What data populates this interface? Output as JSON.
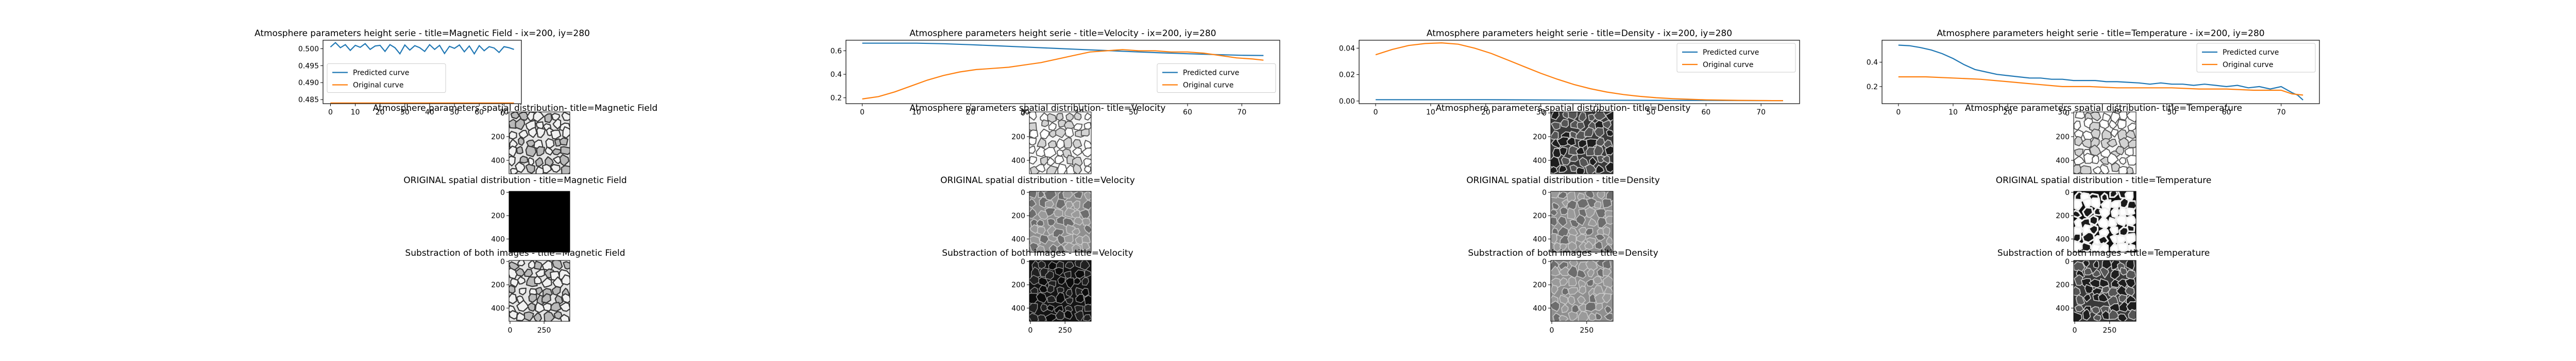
{
  "colors": {
    "predicted": "#1f77b4",
    "original": "#ff7f0e",
    "axis": "#000000"
  },
  "legend": {
    "predicted": "Predicted curve",
    "original": "Original curve"
  },
  "chart_data": [
    {
      "type": "line",
      "title": "Atmosphere parameters height serie - title=Magnetic Field - ix=200, iy=280",
      "legend_position": "center-left",
      "xlim": [
        -3,
        77
      ],
      "ylim": [
        0.4838,
        0.5025
      ],
      "x_ticks": [
        0,
        10,
        20,
        30,
        40,
        50,
        60,
        70
      ],
      "y_ticks": [
        0.485,
        0.49,
        0.495,
        0.5
      ],
      "y_tick_labels": [
        "0.485",
        "0.490",
        "0.495",
        "0.500"
      ],
      "series": [
        {
          "name": "Predicted curve",
          "x": [
            0,
            2,
            4,
            6,
            8,
            10,
            12,
            14,
            16,
            18,
            20,
            22,
            24,
            26,
            28,
            30,
            32,
            34,
            36,
            38,
            40,
            42,
            44,
            46,
            48,
            50,
            52,
            54,
            56,
            58,
            60,
            62,
            64,
            66,
            68,
            70,
            72,
            74
          ],
          "y": [
            0.5005,
            0.5018,
            0.5003,
            0.5012,
            0.4995,
            0.501,
            0.5004,
            0.5015,
            0.4998,
            0.5008,
            0.501,
            0.4992,
            0.5012,
            0.5003,
            0.4985,
            0.5011,
            0.4996,
            0.5009,
            0.5003,
            0.4992,
            0.5012,
            0.4998,
            0.501,
            0.4986,
            0.5007,
            0.5001,
            0.5011,
            0.4991,
            0.5008,
            0.4985,
            0.5009,
            0.4994,
            0.5006,
            0.5002,
            0.4989,
            0.5006,
            0.5003,
            0.4998
          ]
        },
        {
          "name": "Original curve",
          "x": [
            0,
            74
          ],
          "y": [
            0.484,
            0.484
          ]
        }
      ]
    },
    {
      "type": "line",
      "title": "Atmosphere parameters height serie - title=Velocity - ix=200, iy=280",
      "legend_position": "center-right",
      "xlim": [
        -3,
        77
      ],
      "ylim": [
        0.15,
        0.69
      ],
      "x_ticks": [
        0,
        10,
        20,
        30,
        40,
        50,
        60,
        70
      ],
      "y_ticks": [
        0.2,
        0.4,
        0.6
      ],
      "y_tick_labels": [
        "0.2",
        "0.4",
        "0.6"
      ],
      "series": [
        {
          "name": "Predicted curve",
          "x": [
            0,
            5,
            10,
            15,
            20,
            25,
            30,
            35,
            40,
            45,
            50,
            55,
            60,
            65,
            70,
            74
          ],
          "y": [
            0.665,
            0.665,
            0.665,
            0.66,
            0.652,
            0.642,
            0.632,
            0.622,
            0.612,
            0.602,
            0.592,
            0.583,
            0.575,
            0.568,
            0.562,
            0.56
          ]
        },
        {
          "name": "Original curve",
          "x": [
            0,
            3,
            6,
            9,
            12,
            15,
            18,
            21,
            24,
            27,
            30,
            33,
            36,
            39,
            42,
            45,
            48,
            51,
            54,
            57,
            60,
            63,
            66,
            69,
            72,
            74
          ],
          "y": [
            0.19,
            0.21,
            0.25,
            0.3,
            0.35,
            0.39,
            0.42,
            0.44,
            0.45,
            0.46,
            0.48,
            0.5,
            0.53,
            0.56,
            0.59,
            0.6,
            0.61,
            0.6,
            0.6,
            0.59,
            0.59,
            0.58,
            0.56,
            0.54,
            0.53,
            0.52
          ]
        }
      ]
    },
    {
      "type": "line",
      "title": "Atmosphere parameters height serie - title=Density - ix=200, iy=280",
      "legend_position": "top-right",
      "xlim": [
        -3,
        77
      ],
      "ylim": [
        -0.002,
        0.046
      ],
      "x_ticks": [
        0,
        10,
        20,
        30,
        40,
        50,
        60,
        70
      ],
      "y_ticks": [
        0.0,
        0.02,
        0.04
      ],
      "y_tick_labels": [
        "0.00",
        "0.02",
        "0.04"
      ],
      "series": [
        {
          "name": "Predicted curve",
          "x": [
            0,
            10,
            20,
            30,
            40,
            50,
            60,
            70,
            74
          ],
          "y": [
            0.001,
            0.001,
            0.001,
            0.0008,
            0.0006,
            0.0005,
            0.0004,
            0.0003,
            0.0003
          ]
        },
        {
          "name": "Original curve",
          "x": [
            0,
            3,
            6,
            9,
            12,
            15,
            18,
            21,
            24,
            27,
            30,
            33,
            36,
            39,
            42,
            45,
            48,
            51,
            54,
            57,
            60,
            63,
            66,
            69,
            72,
            74
          ],
          "y": [
            0.035,
            0.039,
            0.042,
            0.0435,
            0.044,
            0.043,
            0.04,
            0.036,
            0.031,
            0.026,
            0.021,
            0.0165,
            0.0125,
            0.0093,
            0.0068,
            0.0049,
            0.0035,
            0.0025,
            0.0018,
            0.0013,
            0.0009,
            0.0007,
            0.0005,
            0.0004,
            0.0003,
            0.0003
          ]
        }
      ]
    },
    {
      "type": "line",
      "title": "Atmosphere parameters height serie - title=Temperature - ix=200, iy=280",
      "legend_position": "top-right",
      "xlim": [
        -3,
        77
      ],
      "ylim": [
        0.06,
        0.58
      ],
      "x_ticks": [
        0,
        10,
        20,
        30,
        40,
        50,
        60,
        70
      ],
      "y_ticks": [
        0.2,
        0.4
      ],
      "y_tick_labels": [
        "0.2",
        "0.4"
      ],
      "series": [
        {
          "name": "Predicted curve",
          "x": [
            0,
            2,
            4,
            6,
            8,
            10,
            12,
            14,
            16,
            18,
            20,
            22,
            24,
            26,
            28,
            30,
            32,
            34,
            36,
            38,
            40,
            42,
            44,
            46,
            48,
            50,
            52,
            54,
            56,
            58,
            60,
            62,
            64,
            66,
            68,
            70,
            72,
            73,
            74
          ],
          "y": [
            0.54,
            0.535,
            0.52,
            0.5,
            0.47,
            0.43,
            0.38,
            0.34,
            0.32,
            0.3,
            0.29,
            0.28,
            0.27,
            0.27,
            0.26,
            0.26,
            0.25,
            0.25,
            0.25,
            0.24,
            0.24,
            0.235,
            0.23,
            0.22,
            0.23,
            0.22,
            0.22,
            0.21,
            0.22,
            0.21,
            0.2,
            0.21,
            0.19,
            0.2,
            0.18,
            0.2,
            0.15,
            0.13,
            0.09
          ]
        },
        {
          "name": "Original curve",
          "x": [
            0,
            5,
            10,
            15,
            20,
            25,
            30,
            35,
            40,
            45,
            50,
            55,
            60,
            65,
            70,
            72,
            74
          ],
          "y": [
            0.28,
            0.28,
            0.27,
            0.26,
            0.24,
            0.22,
            0.2,
            0.2,
            0.19,
            0.19,
            0.19,
            0.18,
            0.18,
            0.17,
            0.17,
            0.14,
            0.13
          ]
        }
      ]
    }
  ],
  "images": [
    [
      {
        "title": "Atmosphere parameters spatial distribution- title=Magnetic Field",
        "style": "light-cells",
        "seed": 11
      },
      {
        "title": "ORIGINAL spatial distribution - title=Magnetic Field",
        "style": "black",
        "seed": 12
      },
      {
        "title": "Substraction of both images - title=Magnetic Field",
        "style": "light-cells",
        "seed": 13
      }
    ],
    [
      {
        "title": "Atmosphere parameters spatial distribution- title=Velocity",
        "style": "white-cells",
        "seed": 21
      },
      {
        "title": "ORIGINAL spatial distribution - title=Velocity",
        "style": "gray-cells",
        "seed": 22
      },
      {
        "title": "Substraction of both images - title=Velocity",
        "style": "dark-lines",
        "seed": 23
      }
    ],
    [
      {
        "title": "Atmosphere parameters spatial distribution- title=Density",
        "style": "dark-cells",
        "seed": 31
      },
      {
        "title": "ORIGINAL spatial distribution - title=Density",
        "style": "gray-cells",
        "seed": 32
      },
      {
        "title": "Substraction of both images - title=Density",
        "style": "gray-cells",
        "seed": 33
      }
    ],
    [
      {
        "title": "Atmosphere parameters spatial distribution- title=Temperature",
        "style": "white-cells",
        "seed": 41
      },
      {
        "title": "ORIGINAL spatial distribution - title=Temperature",
        "style": "bw-cells",
        "seed": 42
      },
      {
        "title": "Substraction of both images - title=Temperature",
        "style": "dark-cells",
        "seed": 43
      }
    ]
  ],
  "image_axes": {
    "y_ticks": [
      "0",
      "200",
      "400"
    ],
    "x_ticks": [
      "0",
      "250"
    ]
  }
}
